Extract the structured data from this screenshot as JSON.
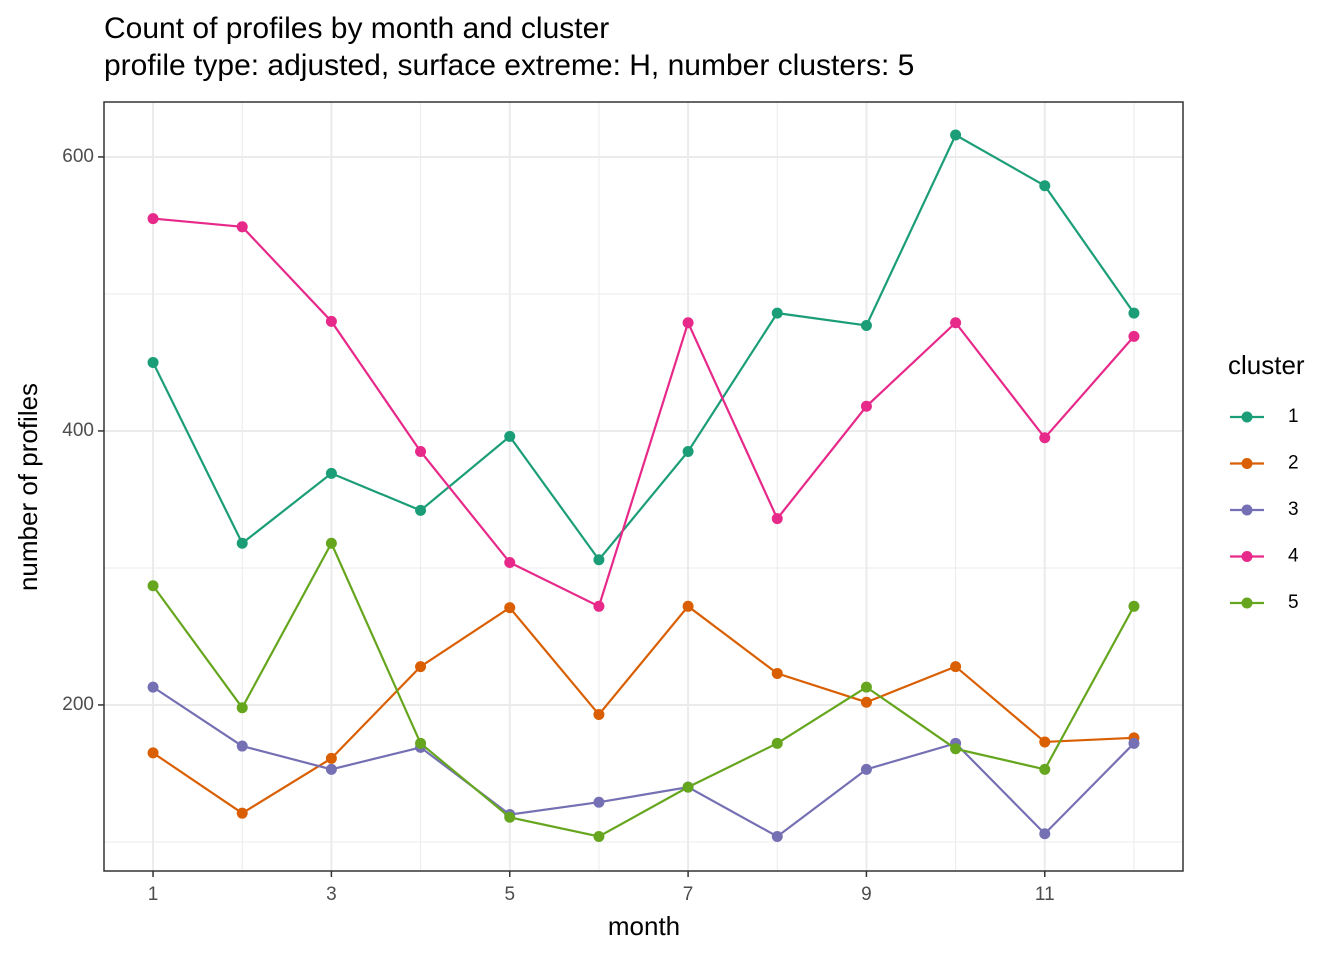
{
  "chart_data": {
    "type": "line",
    "title": "Count of profiles by month and cluster",
    "subtitle": "profile type: adjusted, surface extreme: H, number clusters: 5",
    "x_label": "month",
    "y_label": "number of profiles",
    "legend_title": "cluster",
    "x": [
      1,
      2,
      3,
      4,
      5,
      6,
      7,
      8,
      9,
      10,
      11,
      12
    ],
    "xlim": [
      0.45,
      12.55
    ],
    "xticks": [
      1,
      3,
      5,
      7,
      9,
      11
    ],
    "ylim": [
      78.8,
      640.1
    ],
    "yticks": [
      200,
      400,
      600
    ],
    "grid": true,
    "legend_position": "right",
    "series": [
      {
        "name": "1",
        "color": "#1b9e77",
        "values": [
          450,
          318,
          369,
          342,
          396,
          306,
          385,
          486,
          477,
          616,
          579,
          486
        ]
      },
      {
        "name": "2",
        "color": "#d95f02",
        "values": [
          165,
          121,
          161,
          228,
          271,
          193,
          272,
          223,
          202,
          228,
          173,
          176
        ]
      },
      {
        "name": "3",
        "color": "#7570b3",
        "values": [
          213,
          170,
          153,
          169,
          120,
          129,
          140,
          104,
          153,
          172,
          106,
          172
        ]
      },
      {
        "name": "4",
        "color": "#e7298a",
        "values": [
          555,
          549,
          480,
          385,
          304,
          272,
          479,
          336,
          418,
          479,
          395,
          469
        ]
      },
      {
        "name": "5",
        "color": "#66a61e",
        "values": [
          287,
          198,
          318,
          172,
          118,
          104,
          140,
          172,
          213,
          168,
          153,
          272
        ]
      }
    ]
  }
}
